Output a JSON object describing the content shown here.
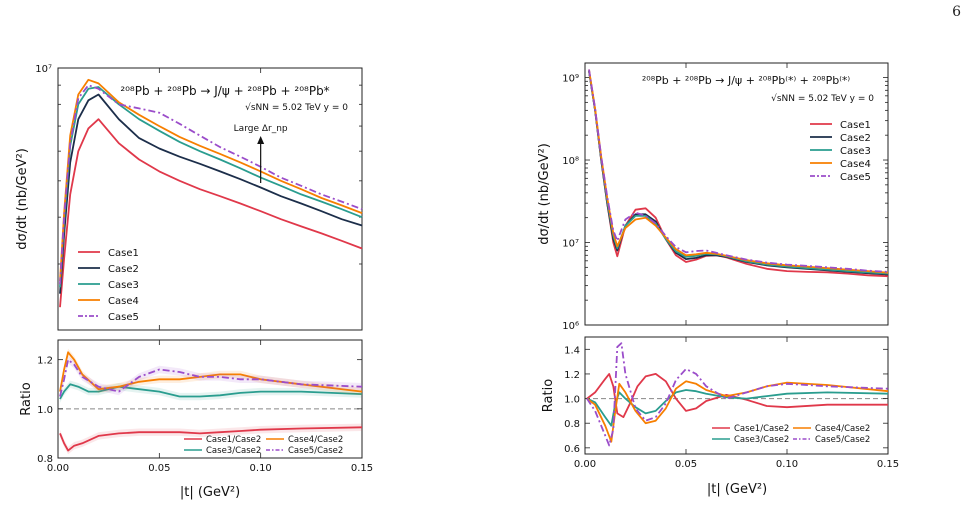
{
  "page_number": "6",
  "chart_data": [
    {
      "type": "line",
      "panel": "left",
      "title": "²⁰⁸Pb + ²⁰⁸Pb → J/ψ + ²⁰⁸Pb + ²⁰⁸Pb*",
      "subtitle": "√sNN = 5.02 TeV y = 0",
      "annotation": "Large Δr_np",
      "xlabel": "|t| (GeV²)",
      "ylabel": "dσ/dt (nb/GeV²)",
      "ylabel_ratio": "Ratio",
      "xlim": [
        0,
        0.15
      ],
      "ylim_log": [
        2000000,
        10000000
      ],
      "ylim_ratio": [
        0.8,
        1.28
      ],
      "y_ticks": [
        "10⁷"
      ],
      "x_ticks": [
        "0.00",
        "0.05",
        "0.10",
        "0.15"
      ],
      "ratio_ticks": [
        "0.8",
        "1.0",
        "1.2"
      ],
      "legend": "center-left",
      "ratio_legend": "bottom-right",
      "colors": {
        "Case1": "#e0384a",
        "Case2": "#1c2e4a",
        "Case3": "#2a9d8f",
        "Case4": "#f77f00",
        "Case5": "#9b4dca"
      },
      "series": [
        {
          "name": "Case1",
          "x": [
            0.001,
            0.003,
            0.006,
            0.01,
            0.015,
            0.02,
            0.03,
            0.04,
            0.05,
            0.06,
            0.07,
            0.08,
            0.09,
            0.1,
            0.11,
            0.12,
            0.13,
            0.14,
            0.15
          ],
          "y": [
            2300000,
            3100000,
            4600000,
            6000000,
            6900000,
            7300000,
            6300000,
            5700000,
            5300000,
            5000000,
            4750000,
            4550000,
            4350000,
            4150000,
            3950000,
            3780000,
            3620000,
            3460000,
            3300000
          ]
        },
        {
          "name": "Case2",
          "x": [
            0.001,
            0.003,
            0.006,
            0.01,
            0.015,
            0.02,
            0.03,
            0.04,
            0.05,
            0.06,
            0.07,
            0.08,
            0.09,
            0.1,
            0.11,
            0.12,
            0.13,
            0.14,
            0.15
          ],
          "y": [
            2500000,
            3600000,
            5600000,
            7300000,
            8200000,
            8500000,
            7300000,
            6500000,
            6100000,
            5800000,
            5550000,
            5300000,
            5050000,
            4800000,
            4550000,
            4350000,
            4150000,
            3950000,
            3800000
          ]
        },
        {
          "name": "Case3",
          "x": [
            0.001,
            0.003,
            0.006,
            0.01,
            0.015,
            0.02,
            0.03,
            0.04,
            0.05,
            0.06,
            0.07,
            0.08,
            0.09,
            0.1,
            0.11,
            0.12,
            0.13,
            0.14,
            0.15
          ],
          "y": [
            2600000,
            3900000,
            6200000,
            8000000,
            8800000,
            8900000,
            8000000,
            7300000,
            6800000,
            6350000,
            6000000,
            5700000,
            5400000,
            5100000,
            4850000,
            4600000,
            4400000,
            4200000,
            4000000
          ]
        },
        {
          "name": "Case4",
          "x": [
            0.001,
            0.003,
            0.006,
            0.01,
            0.015,
            0.02,
            0.03,
            0.04,
            0.05,
            0.06,
            0.07,
            0.08,
            0.09,
            0.1,
            0.11,
            0.12,
            0.13,
            0.14,
            0.15
          ],
          "y": [
            2700000,
            4100000,
            6600000,
            8500000,
            9300000,
            9100000,
            8100000,
            7500000,
            7000000,
            6550000,
            6200000,
            5900000,
            5600000,
            5300000,
            5000000,
            4750000,
            4500000,
            4300000,
            4100000
          ]
        },
        {
          "name": "Case5",
          "x": [
            0.001,
            0.003,
            0.006,
            0.01,
            0.015,
            0.02,
            0.03,
            0.04,
            0.05,
            0.06,
            0.07,
            0.08,
            0.09,
            0.1,
            0.11,
            0.12,
            0.13,
            0.14,
            0.15
          ],
          "y": [
            2650000,
            4000000,
            6300000,
            8300000,
            9000000,
            8800000,
            8000000,
            7800000,
            7600000,
            7100000,
            6600000,
            6150000,
            5800000,
            5450000,
            5100000,
            4850000,
            4600000,
            4400000,
            4200000
          ]
        }
      ],
      "ratio_series": [
        {
          "name": "Case1/Case2",
          "x": [
            0.001,
            0.003,
            0.005,
            0.008,
            0.012,
            0.02,
            0.03,
            0.04,
            0.05,
            0.06,
            0.07,
            0.08,
            0.09,
            0.1,
            0.12,
            0.15
          ],
          "y": [
            0.9,
            0.86,
            0.83,
            0.85,
            0.86,
            0.89,
            0.9,
            0.905,
            0.905,
            0.905,
            0.9,
            0.905,
            0.91,
            0.915,
            0.92,
            0.925
          ]
        },
        {
          "name": "Case3/Case2",
          "x": [
            0.001,
            0.003,
            0.006,
            0.01,
            0.015,
            0.02,
            0.03,
            0.04,
            0.05,
            0.06,
            0.07,
            0.08,
            0.09,
            0.1,
            0.12,
            0.15
          ],
          "y": [
            1.04,
            1.07,
            1.1,
            1.09,
            1.07,
            1.07,
            1.09,
            1.08,
            1.07,
            1.05,
            1.05,
            1.055,
            1.065,
            1.07,
            1.07,
            1.06
          ]
        },
        {
          "name": "Case4/Case2",
          "x": [
            0.001,
            0.003,
            0.005,
            0.008,
            0.012,
            0.02,
            0.03,
            0.04,
            0.05,
            0.06,
            0.07,
            0.08,
            0.09,
            0.1,
            0.12,
            0.15
          ],
          "y": [
            1.07,
            1.16,
            1.23,
            1.2,
            1.14,
            1.08,
            1.09,
            1.11,
            1.12,
            1.12,
            1.13,
            1.14,
            1.14,
            1.12,
            1.1,
            1.07
          ]
        },
        {
          "name": "Case5/Case2",
          "x": [
            0.001,
            0.003,
            0.005,
            0.008,
            0.012,
            0.02,
            0.03,
            0.04,
            0.05,
            0.06,
            0.07,
            0.08,
            0.09,
            0.1,
            0.12,
            0.15
          ],
          "y": [
            1.05,
            1.12,
            1.2,
            1.18,
            1.13,
            1.09,
            1.07,
            1.13,
            1.16,
            1.15,
            1.13,
            1.13,
            1.12,
            1.12,
            1.1,
            1.09
          ]
        }
      ]
    },
    {
      "type": "line",
      "panel": "right",
      "title": "²⁰⁸Pb + ²⁰⁸Pb → J/ψ + ²⁰⁸Pb⁽*⁾ + ²⁰⁸Pb⁽*⁾",
      "subtitle": "√sNN = 5.02 TeV y = 0",
      "xlabel": "|t| (GeV²)",
      "ylabel": "dσ/dt (nb/GeV²)",
      "ylabel_ratio": "Ratio",
      "xlim": [
        0,
        0.15
      ],
      "ylim_log": [
        1000000,
        1500000000
      ],
      "ylim_ratio": [
        0.55,
        1.5
      ],
      "y_ticks": [
        "10⁹",
        "10⁸",
        "10⁷",
        "10⁶"
      ],
      "x_ticks": [
        "0.00",
        "0.05",
        "0.10",
        "0.15"
      ],
      "ratio_ticks": [
        "0.6",
        "0.8",
        "1.0",
        "1.2",
        "1.4"
      ],
      "legend": "top-right",
      "ratio_legend": "bottom-center",
      "colors": {
        "Case1": "#e0384a",
        "Case2": "#1c2e4a",
        "Case3": "#2a9d8f",
        "Case4": "#f77f00",
        "Case5": "#9b4dca"
      },
      "series": [
        {
          "name": "Case1",
          "x": [
            0.002,
            0.005,
            0.008,
            0.011,
            0.014,
            0.016,
            0.02,
            0.025,
            0.03,
            0.035,
            0.04,
            0.045,
            0.05,
            0.055,
            0.06,
            0.065,
            0.07,
            0.08,
            0.09,
            0.1,
            0.11,
            0.12,
            0.13,
            0.14,
            0.15
          ],
          "y": [
            1200000000,
            400000000,
            100000000,
            30000000,
            10000000,
            6800000,
            16000000,
            25000000,
            26000000,
            20000000,
            11000000,
            7000000,
            5800000,
            6200000,
            6900000,
            7000000,
            6600000,
            5500000,
            4800000,
            4500000,
            4400000,
            4350000,
            4200000,
            4000000,
            3900000
          ]
        },
        {
          "name": "Case2",
          "x": [
            0.002,
            0.005,
            0.008,
            0.011,
            0.014,
            0.016,
            0.02,
            0.025,
            0.03,
            0.035,
            0.04,
            0.045,
            0.05,
            0.055,
            0.06,
            0.065,
            0.07,
            0.08,
            0.09,
            0.1,
            0.11,
            0.12,
            0.13,
            0.14,
            0.15
          ],
          "y": [
            1200000000,
            400000000,
            100000000,
            30000000,
            11000000,
            8000000,
            16000000,
            22000000,
            22000000,
            18000000,
            11000000,
            7500000,
            6300000,
            6500000,
            7000000,
            7000000,
            6700000,
            5800000,
            5300000,
            5000000,
            4800000,
            4600000,
            4400000,
            4250000,
            4100000
          ]
        },
        {
          "name": "Case3",
          "x": [
            0.002,
            0.005,
            0.008,
            0.011,
            0.014,
            0.016,
            0.02,
            0.025,
            0.03,
            0.035,
            0.04,
            0.045,
            0.05,
            0.055,
            0.06,
            0.065,
            0.07,
            0.08,
            0.09,
            0.1,
            0.11,
            0.12,
            0.13,
            0.14,
            0.15
          ],
          "y": [
            1200000000,
            410000000,
            105000000,
            32000000,
            12000000,
            8500000,
            16000000,
            21000000,
            21000000,
            17000000,
            11000000,
            7800000,
            6700000,
            6900000,
            7300000,
            7200000,
            6800000,
            5900000,
            5400000,
            5100000,
            4900000,
            4700000,
            4500000,
            4350000,
            4200000
          ]
        },
        {
          "name": "Case4",
          "x": [
            0.002,
            0.005,
            0.008,
            0.011,
            0.014,
            0.016,
            0.02,
            0.025,
            0.03,
            0.035,
            0.04,
            0.045,
            0.05,
            0.055,
            0.06,
            0.065,
            0.07,
            0.08,
            0.09,
            0.1,
            0.11,
            0.12,
            0.13,
            0.14,
            0.15
          ],
          "y": [
            1250000000,
            420000000,
            110000000,
            35000000,
            13000000,
            9000000,
            15000000,
            19000000,
            20000000,
            16000000,
            11500000,
            8300000,
            7000000,
            7200000,
            7500000,
            7300000,
            6900000,
            6100000,
            5600000,
            5300000,
            5100000,
            4900000,
            4700000,
            4500000,
            4300000
          ]
        },
        {
          "name": "Case5",
          "x": [
            0.002,
            0.005,
            0.008,
            0.011,
            0.014,
            0.016,
            0.02,
            0.025,
            0.03,
            0.035,
            0.04,
            0.045,
            0.05,
            0.055,
            0.06,
            0.065,
            0.07,
            0.08,
            0.09,
            0.1,
            0.11,
            0.12,
            0.13,
            0.14,
            0.15
          ],
          "y": [
            1250000000,
            420000000,
            110000000,
            36000000,
            14000000,
            10500000,
            19000000,
            23000000,
            21000000,
            17000000,
            12000000,
            8800000,
            7600000,
            7900000,
            8000000,
            7500000,
            7000000,
            6200000,
            5700000,
            5400000,
            5200000,
            5000000,
            4800000,
            4550000,
            4400000
          ]
        }
      ],
      "ratio_series": [
        {
          "name": "Case1/Case2",
          "x": [
            0.001,
            0.005,
            0.01,
            0.012,
            0.014,
            0.016,
            0.019,
            0.022,
            0.026,
            0.03,
            0.035,
            0.04,
            0.045,
            0.05,
            0.055,
            0.06,
            0.07,
            0.08,
            0.09,
            0.1,
            0.12,
            0.15
          ],
          "y": [
            1.0,
            1.05,
            1.16,
            1.2,
            1.1,
            0.88,
            0.85,
            0.95,
            1.1,
            1.18,
            1.2,
            1.14,
            1.0,
            0.9,
            0.92,
            0.98,
            1.03,
            0.99,
            0.94,
            0.93,
            0.95,
            0.95
          ]
        },
        {
          "name": "Case3/Case2",
          "x": [
            0.001,
            0.005,
            0.01,
            0.013,
            0.015,
            0.017,
            0.02,
            0.025,
            0.03,
            0.035,
            0.04,
            0.045,
            0.05,
            0.055,
            0.06,
            0.07,
            0.08,
            0.09,
            0.1,
            0.12,
            0.15
          ],
          "y": [
            1.0,
            0.97,
            0.85,
            0.78,
            0.96,
            1.05,
            1.0,
            0.93,
            0.88,
            0.9,
            0.98,
            1.05,
            1.07,
            1.06,
            1.04,
            1.01,
            1.0,
            1.02,
            1.04,
            1.05,
            1.04
          ]
        },
        {
          "name": "Case4/Case2",
          "x": [
            0.001,
            0.005,
            0.01,
            0.013,
            0.015,
            0.017,
            0.02,
            0.025,
            0.03,
            0.035,
            0.04,
            0.045,
            0.05,
            0.055,
            0.06,
            0.07,
            0.08,
            0.09,
            0.1,
            0.12,
            0.15
          ],
          "y": [
            1.0,
            0.95,
            0.78,
            0.65,
            0.9,
            1.12,
            1.05,
            0.9,
            0.8,
            0.82,
            0.92,
            1.08,
            1.14,
            1.12,
            1.07,
            1.02,
            1.05,
            1.1,
            1.13,
            1.11,
            1.06
          ]
        },
        {
          "name": "Case5/Case2",
          "x": [
            0.001,
            0.005,
            0.01,
            0.012,
            0.014,
            0.016,
            0.018,
            0.02,
            0.025,
            0.03,
            0.035,
            0.04,
            0.045,
            0.05,
            0.055,
            0.06,
            0.07,
            0.08,
            0.09,
            0.1,
            0.12,
            0.15
          ],
          "y": [
            1.0,
            0.9,
            0.7,
            0.62,
            0.75,
            1.42,
            1.45,
            1.2,
            0.92,
            0.82,
            0.85,
            0.96,
            1.15,
            1.24,
            1.2,
            1.1,
            1.0,
            1.05,
            1.1,
            1.12,
            1.1,
            1.08
          ]
        }
      ]
    }
  ]
}
